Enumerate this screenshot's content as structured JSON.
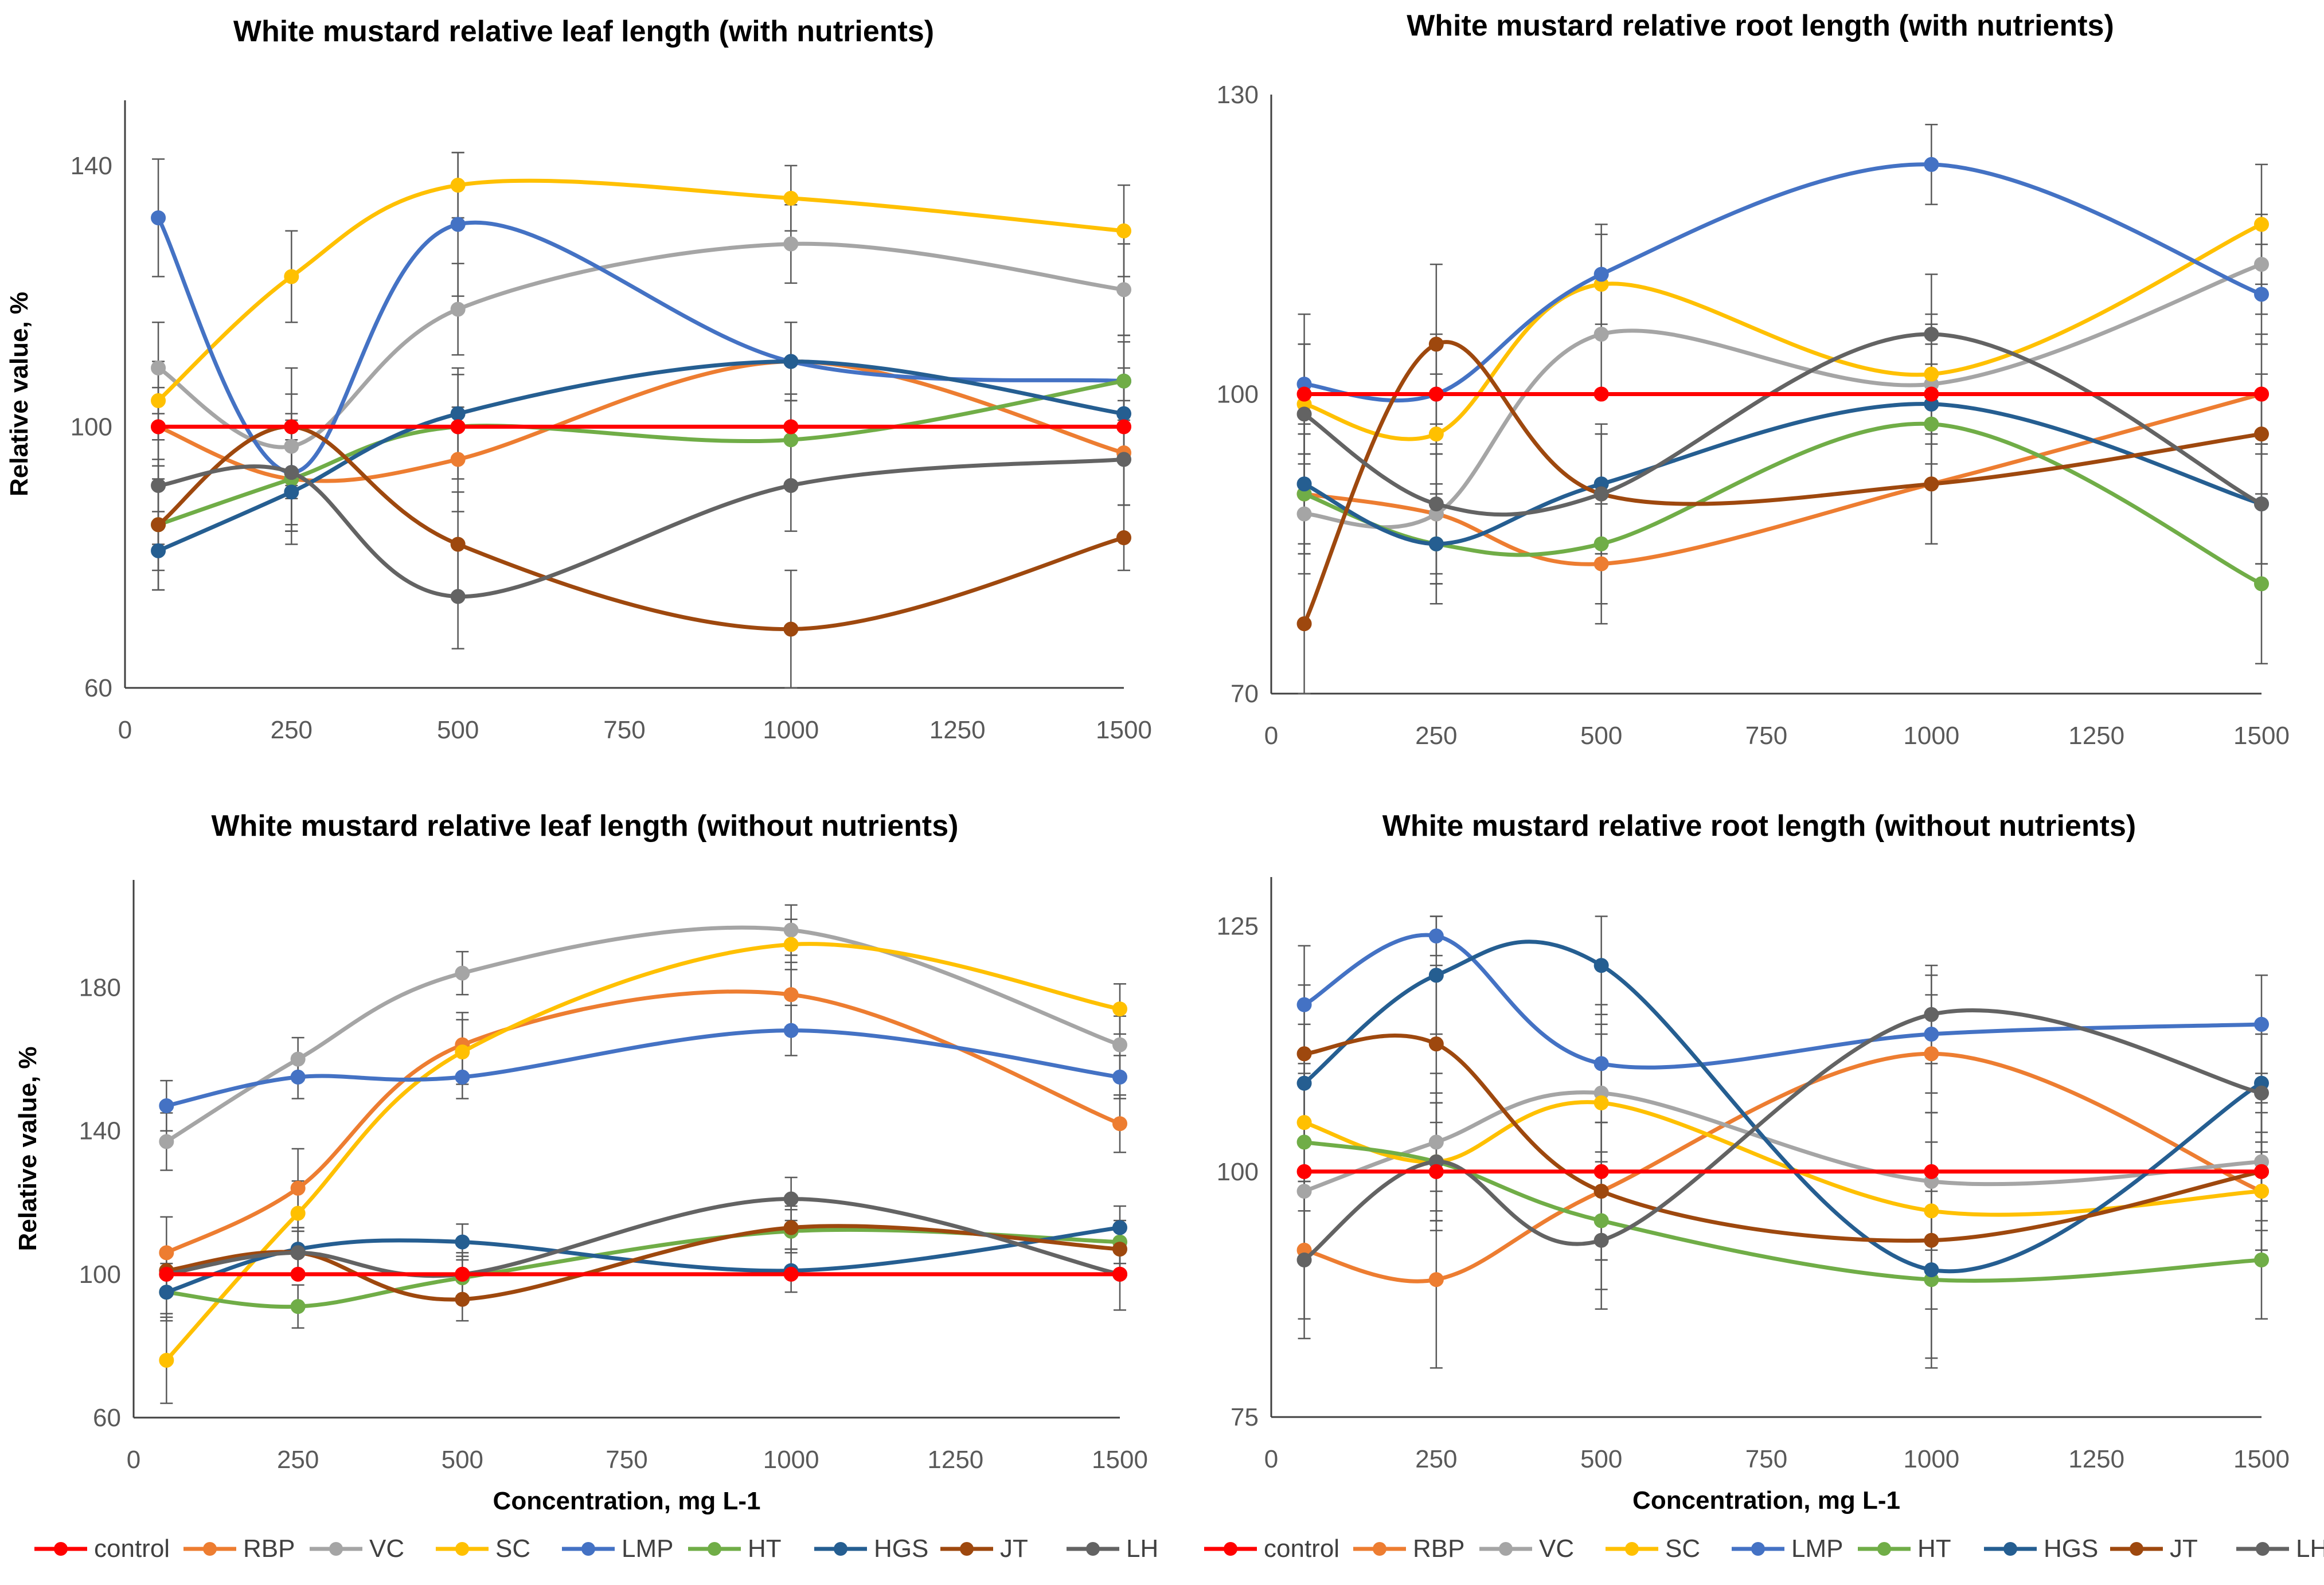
{
  "colors": {
    "control": "#ff0000",
    "RBP": "#ed7d31",
    "VC": "#a5a5a5",
    "SC": "#ffc000",
    "LMP": "#4472c4",
    "HT": "#70ad47",
    "HGS": "#255e91",
    "JT": "#9e480e",
    "LH": "#636363"
  },
  "chart_data": [
    {
      "type": "line",
      "title": "White mustard relative leaf length (with nutrients)",
      "xlabel": "",
      "ylabel": "Relative value, %",
      "xlim": [
        0,
        1500
      ],
      "ylim": [
        60,
        150
      ],
      "xticks": [
        0,
        250,
        500,
        750,
        1000,
        1250,
        1500
      ],
      "yticks": [
        60,
        100,
        140
      ],
      "x": [
        50,
        250,
        500,
        1000,
        1500
      ],
      "series": [
        {
          "name": "control",
          "values": [
            100,
            100,
            100,
            100,
            100
          ],
          "errors": [
            0,
            0,
            0,
            0,
            0
          ]
        },
        {
          "name": "RBP",
          "values": [
            100,
            92,
            95,
            110,
            96
          ],
          "errors": [
            6,
            8,
            8,
            6,
            8
          ]
        },
        {
          "name": "VC",
          "values": [
            109,
            97,
            118,
            128,
            121
          ],
          "errors": [
            7,
            8,
            7,
            6,
            7
          ]
        },
        {
          "name": "SC",
          "values": [
            104,
            123,
            137,
            135,
            130
          ],
          "errors": [
            6,
            7,
            5,
            5,
            7
          ]
        },
        {
          "name": "LMP",
          "values": [
            132,
            93,
            131,
            110,
            107
          ],
          "errors": [
            9,
            8,
            11,
            6,
            7
          ]
        },
        {
          "name": "HT",
          "values": [
            85,
            92,
            100,
            98,
            107
          ],
          "errors": [
            7,
            8,
            8,
            7,
            6
          ]
        },
        {
          "name": "HGS",
          "values": [
            81,
            90,
            102,
            110,
            102
          ],
          "errors": [
            6,
            8,
            7,
            6,
            7
          ]
        },
        {
          "name": "JT",
          "values": [
            85,
            100,
            82,
            69,
            83
          ],
          "errors": [
            10,
            9,
            8,
            9,
            5
          ]
        },
        {
          "name": "LH",
          "values": [
            91,
            93,
            74,
            91,
            95
          ],
          "errors": [
            9,
            9,
            8,
            7,
            7
          ]
        }
      ]
    },
    {
      "type": "line",
      "title": "White mustard relative root length (with nutrients)",
      "xlabel": "",
      "ylabel": "",
      "xlim": [
        0,
        1500
      ],
      "ylim": [
        70,
        130
      ],
      "xticks": [
        0,
        250,
        500,
        750,
        1000,
        1250,
        1500
      ],
      "yticks": [
        70,
        100,
        130
      ],
      "x": [
        50,
        250,
        500,
        1000,
        1500
      ],
      "series": [
        {
          "name": "control",
          "values": [
            100,
            100,
            100,
            100,
            100
          ],
          "errors": [
            0,
            0,
            0,
            0,
            0
          ]
        },
        {
          "name": "RBP",
          "values": [
            90,
            88,
            83,
            91,
            100
          ],
          "errors": [
            6,
            7,
            6,
            6,
            6
          ]
        },
        {
          "name": "VC",
          "values": [
            88,
            88,
            106,
            101,
            113
          ],
          "errors": [
            6,
            6,
            6,
            6,
            5
          ]
        },
        {
          "name": "SC",
          "values": [
            99,
            96,
            111,
            102,
            117
          ],
          "errors": [
            6,
            6,
            5,
            6,
            6
          ]
        },
        {
          "name": "LMP",
          "values": [
            101,
            100,
            112,
            123,
            110
          ],
          "errors": [
            7,
            6,
            5,
            4,
            5
          ]
        },
        {
          "name": "HT",
          "values": [
            90,
            85,
            85,
            97,
            81
          ],
          "errors": [
            6,
            6,
            6,
            6,
            8
          ]
        },
        {
          "name": "HGS",
          "values": [
            91,
            85,
            91,
            99,
            89
          ],
          "errors": [
            6,
            6,
            6,
            6,
            6
          ]
        },
        {
          "name": "JT",
          "values": [
            77,
            105,
            90,
            91,
            96
          ],
          "errors": [
            8,
            8,
            6,
            6,
            6
          ]
        },
        {
          "name": "LH",
          "values": [
            98,
            89,
            90,
            106,
            89
          ],
          "errors": [
            7,
            8,
            6,
            6,
            6
          ]
        }
      ]
    },
    {
      "type": "line",
      "title": "White mustard relative leaf length (without nutrients)",
      "xlabel": "Concentration, mg L-1",
      "ylabel": "Relative value, %",
      "xlim": [
        0,
        1500
      ],
      "ylim": [
        60,
        210
      ],
      "xticks": [
        0,
        250,
        500,
        750,
        1000,
        1250,
        1500
      ],
      "yticks": [
        60,
        100,
        140,
        180
      ],
      "x": [
        50,
        250,
        500,
        1000,
        1500
      ],
      "series": [
        {
          "name": "control",
          "values": [
            100,
            100,
            100,
            100,
            100
          ],
          "errors": [
            0,
            0,
            0,
            0,
            0
          ]
        },
        {
          "name": "RBP",
          "values": [
            106,
            124,
            164,
            178,
            142
          ],
          "errors": [
            10,
            11,
            9,
            9,
            8
          ]
        },
        {
          "name": "VC",
          "values": [
            137,
            160,
            184,
            196,
            164
          ],
          "errors": [
            8,
            6,
            6,
            7,
            8
          ]
        },
        {
          "name": "SC",
          "values": [
            76,
            117,
            162,
            192,
            174
          ],
          "errors": [
            12,
            9,
            9,
            7,
            7
          ]
        },
        {
          "name": "LMP",
          "values": [
            147,
            155,
            155,
            168,
            155
          ],
          "errors": [
            7,
            6,
            6,
            7,
            6
          ]
        },
        {
          "name": "HT",
          "values": [
            95,
            91,
            99,
            112,
            109
          ],
          "errors": [
            8,
            6,
            6,
            6,
            6
          ]
        },
        {
          "name": "HGS",
          "values": [
            95,
            107,
            109,
            101,
            113
          ],
          "errors": [
            6,
            6,
            5,
            6,
            6
          ]
        },
        {
          "name": "JT",
          "values": [
            101,
            106,
            93,
            113,
            107
          ],
          "errors": [
            6,
            6,
            6,
            6,
            6
          ]
        },
        {
          "name": "LH",
          "values": [
            100,
            106,
            100,
            121,
            100
          ],
          "errors": [
            6,
            6,
            6,
            6,
            10
          ]
        }
      ]
    },
    {
      "type": "line",
      "title": "White mustard relative root length (without nutrients)",
      "xlabel": "Concentration, mg L-1",
      "ylabel": "",
      "xlim": [
        0,
        1500
      ],
      "ylim": [
        75,
        130
      ],
      "xticks": [
        0,
        250,
        500,
        750,
        1000,
        1250,
        1500
      ],
      "yticks": [
        75,
        100,
        125
      ],
      "x": [
        50,
        250,
        500,
        1000,
        1500
      ],
      "series": [
        {
          "name": "control",
          "values": [
            100,
            100,
            100,
            100,
            100
          ],
          "errors": [
            0,
            0,
            0,
            0,
            0
          ]
        },
        {
          "name": "RBP",
          "values": [
            92,
            89,
            98,
            112,
            98
          ],
          "errors": [
            7,
            9,
            7,
            6,
            6
          ]
        },
        {
          "name": "VC",
          "values": [
            98,
            103,
            108,
            99,
            101
          ],
          "errors": [
            7,
            7,
            7,
            7,
            6
          ]
        },
        {
          "name": "SC",
          "values": [
            105,
            101,
            107,
            96,
            98
          ],
          "errors": [
            7,
            6,
            7,
            7,
            6
          ]
        },
        {
          "name": "LMP",
          "values": [
            117,
            124,
            111,
            114,
            115
          ],
          "errors": [
            6,
            2,
            6,
            6,
            5
          ]
        },
        {
          "name": "HT",
          "values": [
            103,
            101,
            95,
            89,
            91
          ],
          "errors": [
            7,
            6,
            7,
            9,
            6
          ]
        },
        {
          "name": "HGS",
          "values": [
            109,
            120,
            121,
            90,
            109
          ],
          "errors": [
            6,
            6,
            5,
            9,
            6
          ]
        },
        {
          "name": "JT",
          "values": [
            112,
            113,
            98,
            93,
            100
          ],
          "errors": [
            7,
            8,
            7,
            7,
            6
          ]
        },
        {
          "name": "LH",
          "values": [
            91,
            101,
            93,
            116,
            108
          ],
          "errors": [
            8,
            7,
            7,
            5,
            6
          ]
        }
      ]
    }
  ]
}
